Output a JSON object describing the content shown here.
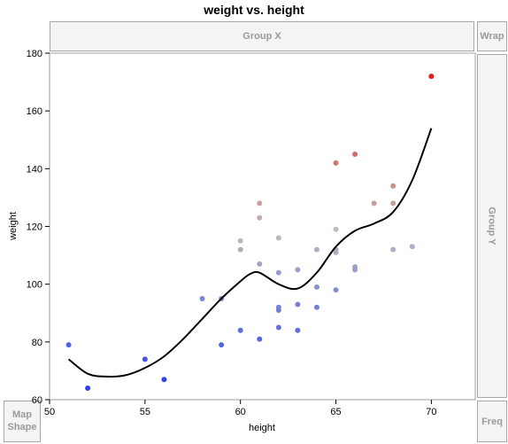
{
  "title": "weight vs. height",
  "zones": {
    "group_x": "Group X",
    "wrap": "Wrap",
    "group_y": "Group Y",
    "freq": "Freq",
    "map_line1": "Map",
    "map_line2": "Shape"
  },
  "chart_data": {
    "type": "scatter",
    "xlabel": "height",
    "ylabel": "weight",
    "xlim": [
      50,
      72.3
    ],
    "ylim": [
      60,
      180
    ],
    "xticks": [
      50,
      55,
      60,
      65,
      70
    ],
    "yticks": [
      60,
      80,
      100,
      120,
      140,
      160,
      180
    ],
    "grid": false,
    "color_gradient": [
      "#2a3ff0",
      "#bdbdbd",
      "#e21a1a"
    ],
    "points": [
      {
        "x": 51,
        "y": 79
      },
      {
        "x": 52,
        "y": 64
      },
      {
        "x": 55,
        "y": 74
      },
      {
        "x": 56,
        "y": 67
      },
      {
        "x": 58,
        "y": 95
      },
      {
        "x": 59,
        "y": 95
      },
      {
        "x": 59,
        "y": 79
      },
      {
        "x": 60,
        "y": 115
      },
      {
        "x": 60,
        "y": 112
      },
      {
        "x": 60,
        "y": 84
      },
      {
        "x": 61,
        "y": 128
      },
      {
        "x": 61,
        "y": 123
      },
      {
        "x": 61,
        "y": 107
      },
      {
        "x": 61,
        "y": 81
      },
      {
        "x": 62,
        "y": 116
      },
      {
        "x": 62,
        "y": 104
      },
      {
        "x": 62,
        "y": 92
      },
      {
        "x": 62,
        "y": 91
      },
      {
        "x": 62,
        "y": 85
      },
      {
        "x": 63,
        "y": 105
      },
      {
        "x": 63,
        "y": 93
      },
      {
        "x": 63,
        "y": 84
      },
      {
        "x": 64,
        "y": 112
      },
      {
        "x": 64,
        "y": 99
      },
      {
        "x": 64,
        "y": 92
      },
      {
        "x": 65,
        "y": 142
      },
      {
        "x": 65,
        "y": 119
      },
      {
        "x": 65,
        "y": 112
      },
      {
        "x": 65,
        "y": 111
      },
      {
        "x": 65,
        "y": 98
      },
      {
        "x": 66,
        "y": 145
      },
      {
        "x": 66,
        "y": 106
      },
      {
        "x": 66,
        "y": 105
      },
      {
        "x": 67,
        "y": 128
      },
      {
        "x": 68,
        "y": 134
      },
      {
        "x": 68,
        "y": 128
      },
      {
        "x": 68,
        "y": 112
      },
      {
        "x": 69,
        "y": 113
      },
      {
        "x": 70,
        "y": 172
      }
    ],
    "smoother": {
      "x": [
        51,
        52,
        53,
        54,
        55,
        56,
        57,
        58,
        59,
        60,
        60.5,
        61,
        62,
        63,
        64,
        65,
        66,
        67,
        68,
        69,
        70
      ],
      "y": [
        74,
        69,
        68,
        68.5,
        71,
        75,
        81,
        88,
        95,
        101,
        103.5,
        104,
        100,
        98.5,
        104,
        113,
        118.5,
        121,
        125,
        136,
        154
      ]
    }
  }
}
